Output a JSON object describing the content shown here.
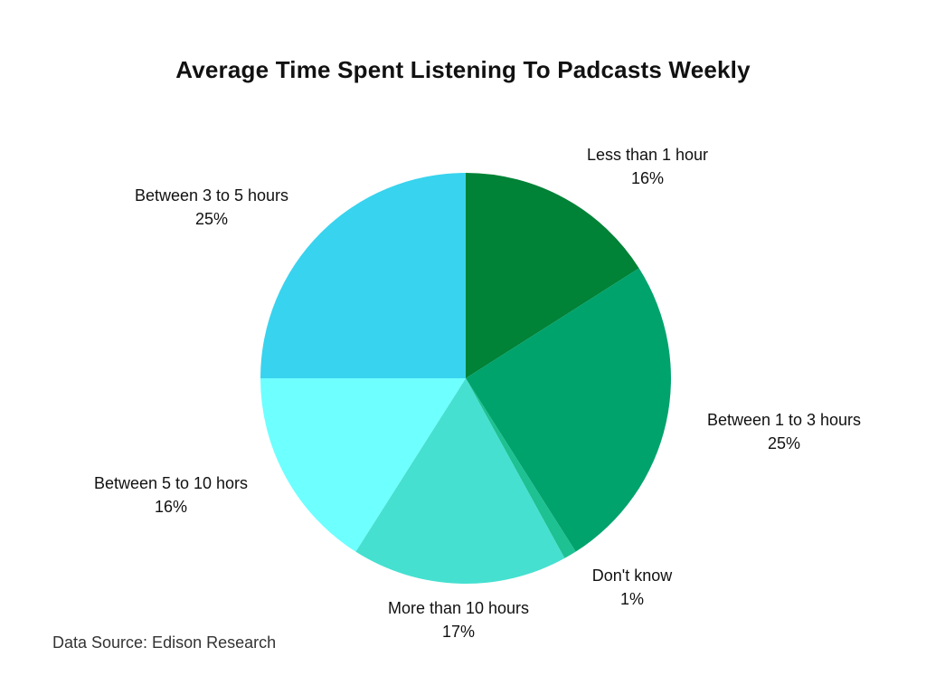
{
  "chart_data": {
    "type": "pie",
    "title": "Average Time Spent Listening To Padcasts Weekly",
    "slices": [
      {
        "label": "Less than 1 hour",
        "value": 16,
        "value_label": "16%",
        "color": "#008237"
      },
      {
        "label": "Between 1 to 3 hours",
        "value": 25,
        "value_label": "25%",
        "color": "#00A36C"
      },
      {
        "label": "Don't know",
        "value": 1,
        "value_label": "1%",
        "color": "#1EC191"
      },
      {
        "label": "More than 10 hours",
        "value": 17,
        "value_label": "17%",
        "color": "#45E0D0"
      },
      {
        "label": "Between 5 to 10 hors",
        "value": 16,
        "value_label": "16%",
        "color": "#6EFFFF"
      },
      {
        "label": "Between 3 to 5 hours",
        "value": 25,
        "value_label": "25%",
        "color": "#38D3EE"
      }
    ]
  },
  "footer": {
    "source": "Data Source: Edison Research"
  }
}
